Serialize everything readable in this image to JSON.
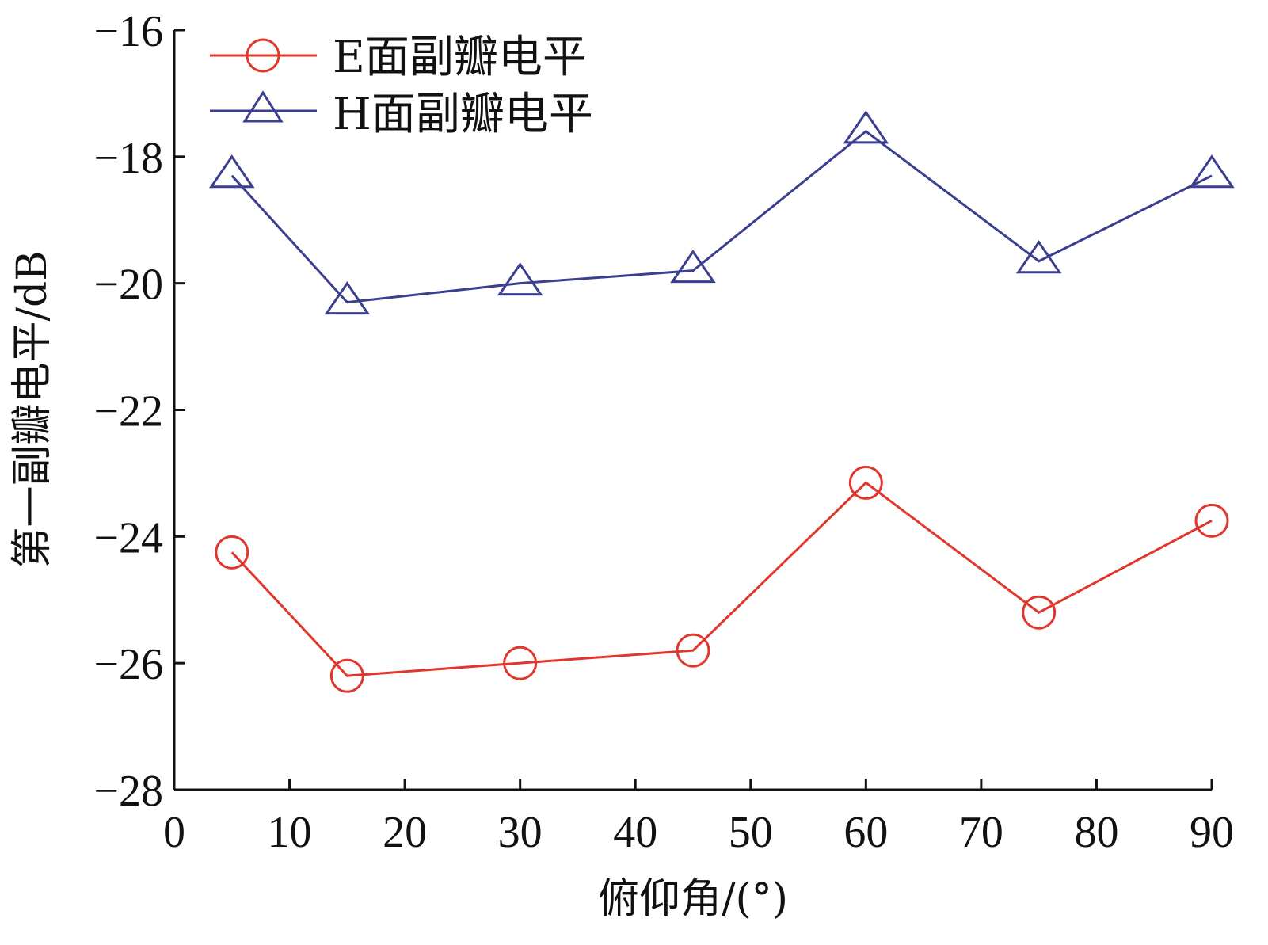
{
  "chart_data": {
    "type": "line",
    "xlabel": "俯仰角/(°)",
    "ylabel": "第一副瓣电平/dB",
    "xlim": [
      0,
      90
    ],
    "ylim": [
      -28,
      -16
    ],
    "xticks": [
      0,
      10,
      20,
      30,
      40,
      50,
      60,
      70,
      80,
      90
    ],
    "yticks": [
      -16,
      -18,
      -20,
      -22,
      -24,
      -26,
      -28
    ],
    "ytick_labels": [
      "−16",
      "−18",
      "−20",
      "−22",
      "−24",
      "−26",
      "−28"
    ],
    "grid": false,
    "legend_position": "top-left",
    "x": [
      5,
      15,
      30,
      45,
      60,
      75,
      90
    ],
    "series": [
      {
        "name": "E面副瓣电平",
        "marker": "circle",
        "color": "#e0362c",
        "values": [
          -24.25,
          -26.2,
          -26.0,
          -25.8,
          -23.15,
          -25.2,
          -23.75
        ]
      },
      {
        "name": "H面副瓣电平",
        "marker": "triangle",
        "color": "#3a3f8f",
        "values": [
          -18.3,
          -20.3,
          -20.0,
          -19.8,
          -17.6,
          -19.65,
          -18.3
        ]
      }
    ]
  }
}
